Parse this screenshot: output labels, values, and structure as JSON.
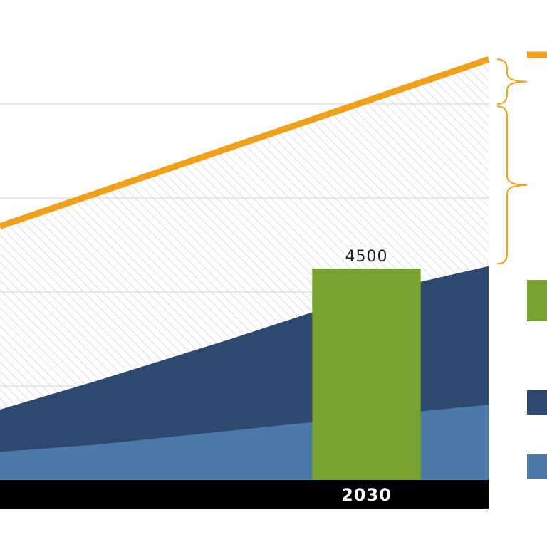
{
  "chart_data": {
    "type": "area",
    "title": "",
    "xlabel": "",
    "ylabel": "",
    "ylim": [
      0,
      9000
    ],
    "grid": true,
    "x_start": 2016.5,
    "x_end": 2034.5,
    "x_ticks": [
      {
        "x": 2030,
        "label": "2030"
      }
    ],
    "series": [
      {
        "type": "line",
        "color": "#f0a11b",
        "points": [
          {
            "x": 2016.5,
            "y": 5400
          },
          {
            "x": 2034.5,
            "y": 8950
          }
        ]
      },
      {
        "type": "hatched-band",
        "pattern": "diagonal-hatch",
        "color": "#d8d8d8",
        "points": [
          {
            "x": 2016.5,
            "y": 5400
          },
          {
            "x": 2034.5,
            "y": 8950
          }
        ]
      },
      {
        "type": "area",
        "color": "#2f4870",
        "points": [
          {
            "x": 2016.5,
            "y": 1500
          },
          {
            "x": 2020,
            "y": 2100
          },
          {
            "x": 2025,
            "y": 3000
          },
          {
            "x": 2030,
            "y": 3950
          },
          {
            "x": 2034.5,
            "y": 4550
          }
        ]
      },
      {
        "type": "area",
        "color": "#4b7aa7",
        "points": [
          {
            "x": 2016.5,
            "y": 600
          },
          {
            "x": 2020,
            "y": 750
          },
          {
            "x": 2025,
            "y": 1050
          },
          {
            "x": 2030,
            "y": 1350
          },
          {
            "x": 2034.5,
            "y": 1600
          }
        ]
      },
      {
        "type": "bar",
        "color": "#78a22f",
        "x": 2030,
        "width": 4,
        "value": 4500,
        "label": "4500"
      }
    ],
    "legend": {
      "placement": "right",
      "swatches": [
        {
          "kind": "line",
          "color": "#f0a11b"
        },
        {
          "kind": "block",
          "color": "#78a22f"
        },
        {
          "kind": "block",
          "color": "#2f4870"
        },
        {
          "kind": "block",
          "color": "#4b7aa7"
        }
      ],
      "braces": [
        {
          "color": "#f0a11b",
          "from": 8950,
          "to": 8000
        },
        {
          "color": "#f0a11b",
          "from": 7950,
          "to": 4600
        }
      ]
    }
  }
}
